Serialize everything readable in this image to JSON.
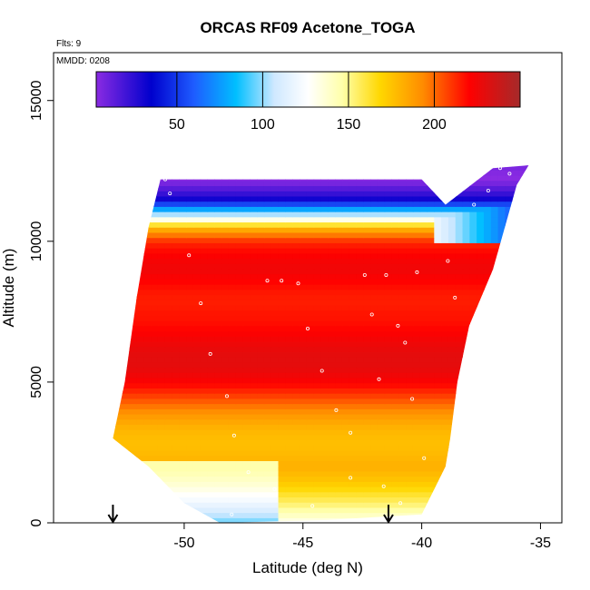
{
  "chart_data": {
    "type": "heatmap",
    "title": "ORCAS RF09 Acetone_TOGA",
    "annotations": {
      "flights": "Flts: 9",
      "date": "MMDD: 0208"
    },
    "xlabel": "Latitude (deg N)",
    "ylabel": "Altitude (m)",
    "xlim": [
      -55.5,
      -34.1
    ],
    "ylim": [
      0,
      16700
    ],
    "x_ticks": [
      -50,
      -45,
      -40,
      -35
    ],
    "y_ticks": [
      0,
      5000,
      10000,
      15000
    ],
    "colorbar": {
      "range": [
        3,
        250
      ],
      "ticks": [
        50,
        100,
        150,
        200
      ],
      "placement": "top-inside"
    },
    "arrows_x": [
      -53.0,
      -41.4
    ],
    "grid": false,
    "region": {
      "left_edge": [
        [
          -53.0,
          3000
        ],
        [
          -52.5,
          5000
        ],
        [
          -52.0,
          8000
        ],
        [
          -51.5,
          10500
        ],
        [
          -51.0,
          12200
        ]
      ],
      "top_edge": [
        [
          -51.0,
          12200
        ],
        [
          -40.0,
          12200
        ],
        [
          -39.0,
          11300
        ],
        [
          -37.0,
          12600
        ],
        [
          -35.5,
          12700
        ]
      ],
      "right_edge": [
        [
          -35.5,
          12700
        ],
        [
          -36.0,
          12000
        ],
        [
          -37.0,
          9000
        ],
        [
          -38.0,
          7000
        ],
        [
          -38.5,
          5000
        ],
        [
          -38.8,
          3000
        ],
        [
          -39.0,
          2000
        ],
        [
          -40.0,
          300
        ]
      ],
      "bottom_edge": [
        [
          -40.0,
          300
        ],
        [
          -44.0,
          100
        ],
        [
          -48.5,
          0
        ],
        [
          -50.0,
          700
        ],
        [
          -51.5,
          2000
        ],
        [
          -53.0,
          3000
        ]
      ]
    },
    "layers": [
      {
        "alt": 12200,
        "value": 15
      },
      {
        "alt": 11500,
        "value": 40
      },
      {
        "alt": 10900,
        "value": 110
      },
      {
        "alt": 10500,
        "value": 170
      },
      {
        "alt": 10000,
        "value": 200
      },
      {
        "alt": 9000,
        "value": 222
      },
      {
        "alt": 7500,
        "value": 228
      },
      {
        "alt": 6000,
        "value": 220
      },
      {
        "alt": 5000,
        "value": 212
      },
      {
        "alt": 4000,
        "value": 200
      },
      {
        "alt": 3000,
        "value": 188
      },
      {
        "alt": 2000,
        "value": 178
      },
      {
        "alt": 1000,
        "value": 150
      },
      {
        "alt": 0,
        "value": 130
      }
    ],
    "sample_points": [
      [
        -51.2,
        12200
      ],
      [
        -50.8,
        12200
      ],
      [
        -50.6,
        11700
      ],
      [
        -49.8,
        9500
      ],
      [
        -49.3,
        7800
      ],
      [
        -48.9,
        6000
      ],
      [
        -48.2,
        4500
      ],
      [
        -47.9,
        3100
      ],
      [
        -46.5,
        8600
      ],
      [
        -45.9,
        8600
      ],
      [
        -45.2,
        8500
      ],
      [
        -44.8,
        6900
      ],
      [
        -44.2,
        5400
      ],
      [
        -43.6,
        4000
      ],
      [
        -43.0,
        3200
      ],
      [
        -42.4,
        8800
      ],
      [
        -42.1,
        7400
      ],
      [
        -41.8,
        5100
      ],
      [
        -41.5,
        8800
      ],
      [
        -41.0,
        7000
      ],
      [
        -40.7,
        6400
      ],
      [
        -40.4,
        4400
      ],
      [
        -40.2,
        8900
      ],
      [
        -39.9,
        2300
      ],
      [
        -47.3,
        1800
      ],
      [
        -46.2,
        1200
      ],
      [
        -44.6,
        600
      ],
      [
        -43.0,
        1600
      ],
      [
        -41.6,
        1300
      ],
      [
        -40.9,
        700
      ],
      [
        -40.3,
        100
      ],
      [
        -48.0,
        300
      ],
      [
        -37.8,
        11300
      ],
      [
        -37.2,
        11800
      ],
      [
        -36.7,
        12600
      ],
      [
        -36.3,
        12400
      ],
      [
        -38.9,
        9300
      ],
      [
        -38.6,
        8000
      ]
    ]
  }
}
